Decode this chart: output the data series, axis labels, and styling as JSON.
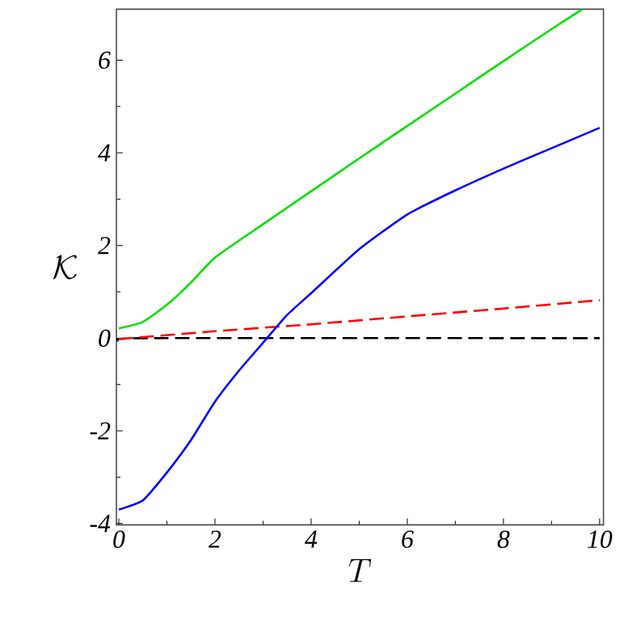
{
  "chart_data": {
    "type": "line",
    "xlabel": "T",
    "ylabel": "\\mathcal{K}",
    "xlim": [
      -0.05,
      10.08
    ],
    "ylim": [
      -4.03,
      7.1
    ],
    "xticks": [
      0,
      2,
      4,
      6,
      8,
      10
    ],
    "yticks": [
      -4,
      -2,
      0,
      2,
      4,
      6
    ],
    "grid": false,
    "marker": "none",
    "series": [
      {
        "color": "#00e000",
        "line_style": "solid",
        "x": [
          0,
          0.5,
          1,
          1.5,
          2,
          3,
          4,
          5,
          6,
          7,
          8,
          9,
          9.64
        ],
        "values": [
          0.21,
          0.35,
          0.72,
          1.2,
          1.74,
          2.46,
          3.17,
          3.88,
          4.58,
          5.28,
          5.98,
          6.67,
          7.1
        ]
      },
      {
        "color": "#0000ff",
        "line_style": "solid",
        "x": [
          0,
          0.5,
          1,
          1.5,
          2,
          2.5,
          3,
          3.5,
          4,
          5,
          6,
          7,
          8,
          9,
          10
        ],
        "values": [
          -3.7,
          -3.5,
          -2.9,
          -2.2,
          -1.37,
          -0.7,
          -0.1,
          0.5,
          0.97,
          1.92,
          2.67,
          3.19,
          3.66,
          4.1,
          4.54
        ]
      },
      {
        "color": "#ff0000",
        "line_style": "dashed",
        "x": [
          0,
          2,
          4,
          6,
          8,
          10
        ],
        "values": [
          -0.02,
          0.15,
          0.3,
          0.47,
          0.64,
          0.82
        ]
      },
      {
        "color": "#000000",
        "line_style": "dashed",
        "x": [
          0,
          0.5,
          10
        ],
        "values": [
          -0.05,
          0,
          0
        ]
      }
    ]
  }
}
